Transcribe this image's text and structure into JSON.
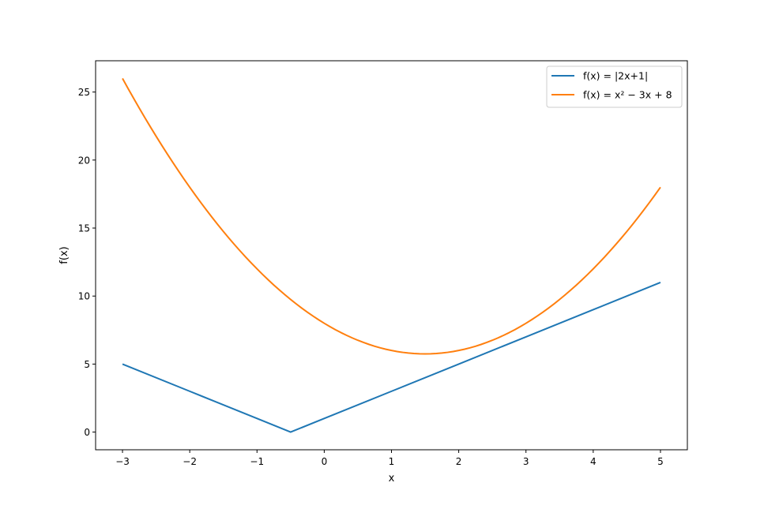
{
  "chart_data": {
    "type": "line",
    "title": "",
    "xlabel": "x",
    "ylabel": "f(x)",
    "xlim": [
      -3.4,
      5.4
    ],
    "ylim": [
      -1.3,
      27.3
    ],
    "x_ticks": [
      -3,
      -2,
      -1,
      0,
      1,
      2,
      3,
      4,
      5
    ],
    "x_tick_labels": [
      "−3",
      "−2",
      "−1",
      "0",
      "1",
      "2",
      "3",
      "4",
      "5"
    ],
    "y_ticks": [
      0,
      5,
      10,
      15,
      20,
      25
    ],
    "y_tick_labels": [
      "0",
      "5",
      "10",
      "15",
      "20",
      "25"
    ],
    "grid": false,
    "legend_position": "top-right",
    "series": [
      {
        "name": "f(x) = |2x+1|",
        "color": "#1f77b4",
        "x": [
          -3,
          -2,
          -1,
          -0.5,
          0,
          1,
          2,
          3,
          4,
          5
        ],
        "y": [
          5,
          3,
          1,
          0,
          1,
          3,
          5,
          7,
          9,
          11
        ]
      },
      {
        "name": "f(x) = x² − 3x + 8",
        "color": "#ff7f0e",
        "x": [
          -3,
          -2.5,
          -2,
          -1.5,
          -1,
          -0.5,
          0,
          0.5,
          1,
          1.5,
          2,
          2.5,
          3,
          3.5,
          4,
          4.5,
          5
        ],
        "y": [
          26,
          21.75,
          18,
          14.75,
          12,
          9.75,
          8,
          6.75,
          6,
          5.75,
          6,
          6.75,
          8,
          9.75,
          12,
          14.75,
          18
        ]
      }
    ]
  }
}
